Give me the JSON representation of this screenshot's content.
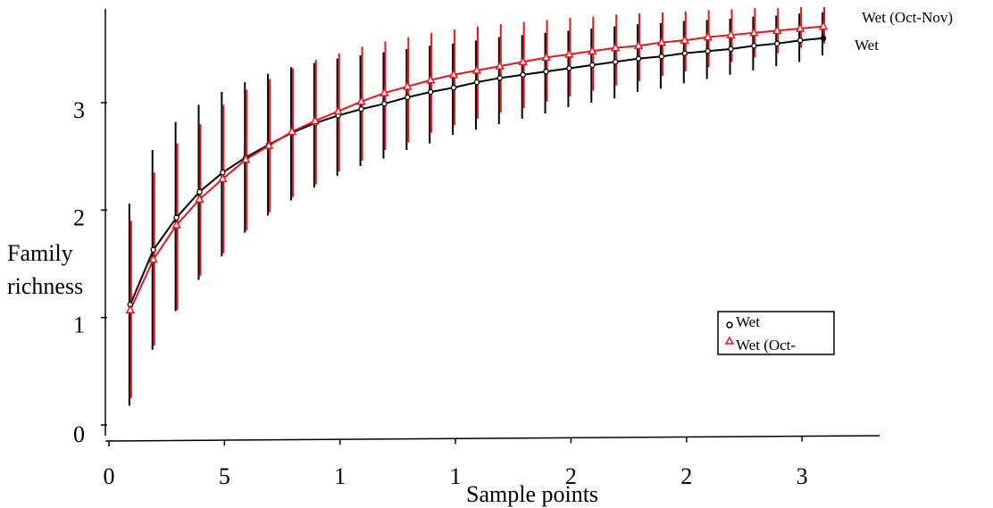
{
  "chart_data": {
    "type": "line",
    "title": "",
    "xlabel": "Sample points",
    "ylabel": "Family richness",
    "ylabel_lines": [
      "Family",
      "richness"
    ],
    "x_tick_labels": [
      "0",
      "5",
      "1",
      "1",
      "2",
      "2",
      "3"
    ],
    "y_tick_labels": [
      "0",
      "1",
      "2",
      "3"
    ],
    "ylim": [
      0,
      3.9
    ],
    "xlim": [
      0,
      31
    ],
    "grid": false,
    "legend_position": "bottom-right",
    "error_bars": true,
    "series": [
      {
        "name": "Wet",
        "end_label": "Wet",
        "legend_label": "Wet",
        "color": "#000000",
        "marker": "circle",
        "x": [
          1,
          2,
          3,
          4,
          5,
          6,
          7,
          8,
          9,
          10,
          11,
          12,
          13,
          14,
          15,
          16,
          17,
          18,
          19,
          20,
          21,
          22,
          23,
          24,
          25,
          26,
          27,
          28,
          29,
          30,
          31
        ],
        "values": [
          1.12,
          1.63,
          1.93,
          2.17,
          2.35,
          2.49,
          2.61,
          2.72,
          2.81,
          2.88,
          2.94,
          2.99,
          3.05,
          3.1,
          3.14,
          3.19,
          3.23,
          3.26,
          3.29,
          3.32,
          3.35,
          3.38,
          3.41,
          3.43,
          3.46,
          3.48,
          3.5,
          3.53,
          3.55,
          3.58,
          3.6
        ],
        "error_low": [
          0.18,
          0.7,
          1.06,
          1.35,
          1.57,
          1.79,
          1.95,
          2.09,
          2.21,
          2.32,
          2.41,
          2.48,
          2.56,
          2.62,
          2.7,
          2.75,
          2.8,
          2.85,
          2.9,
          2.96,
          3.0,
          3.04,
          3.1,
          3.13,
          3.18,
          3.22,
          3.26,
          3.3,
          3.34,
          3.38,
          3.44
        ],
        "error_high": [
          2.06,
          2.56,
          2.82,
          2.98,
          3.1,
          3.19,
          3.27,
          3.33,
          3.37,
          3.41,
          3.44,
          3.47,
          3.5,
          3.53,
          3.55,
          3.58,
          3.61,
          3.63,
          3.65,
          3.67,
          3.69,
          3.71,
          3.73,
          3.74,
          3.76,
          3.77,
          3.78,
          3.8,
          3.81,
          3.83,
          3.84
        ]
      },
      {
        "name": "Wet (Oct-Nov)",
        "end_label": "Wet (Oct-Nov)",
        "legend_label": "Wet (Oct-",
        "color": "#e8141c",
        "marker": "triangle",
        "x": [
          1,
          2,
          3,
          4,
          5,
          6,
          7,
          8,
          9,
          10,
          11,
          12,
          13,
          14,
          15,
          16,
          17,
          18,
          19,
          20,
          21,
          22,
          23,
          24,
          25,
          26,
          27,
          28,
          29,
          30,
          31
        ],
        "values": [
          1.07,
          1.54,
          1.86,
          2.1,
          2.29,
          2.47,
          2.6,
          2.73,
          2.83,
          2.92,
          3.01,
          3.09,
          3.15,
          3.21,
          3.26,
          3.3,
          3.34,
          3.38,
          3.42,
          3.45,
          3.48,
          3.51,
          3.53,
          3.56,
          3.58,
          3.61,
          3.63,
          3.65,
          3.67,
          3.69,
          3.71
        ],
        "error_low": [
          0.25,
          0.74,
          1.07,
          1.39,
          1.6,
          1.81,
          1.98,
          2.12,
          2.24,
          2.36,
          2.46,
          2.56,
          2.63,
          2.72,
          2.79,
          2.85,
          2.91,
          2.95,
          3.01,
          3.06,
          3.11,
          3.16,
          3.2,
          3.25,
          3.29,
          3.33,
          3.38,
          3.42,
          3.46,
          3.51,
          3.55
        ],
        "error_high": [
          1.9,
          2.35,
          2.62,
          2.8,
          2.98,
          3.12,
          3.22,
          3.32,
          3.4,
          3.46,
          3.52,
          3.57,
          3.61,
          3.65,
          3.68,
          3.71,
          3.73,
          3.75,
          3.77,
          3.79,
          3.8,
          3.82,
          3.83,
          3.84,
          3.85,
          3.86,
          3.87,
          3.88,
          3.88,
          3.89,
          3.89
        ]
      }
    ]
  }
}
